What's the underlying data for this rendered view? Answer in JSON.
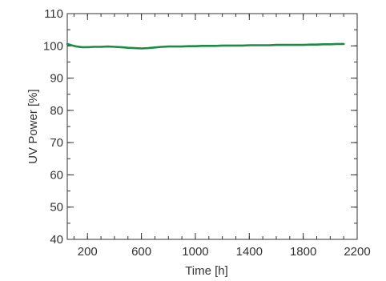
{
  "chart_data": {
    "type": "line",
    "title": "",
    "xlabel": "Time [h]",
    "ylabel": "UV Power [%]",
    "xlim": [
      50,
      2200
    ],
    "ylim": [
      40,
      110
    ],
    "x_ticks": [
      200,
      600,
      1000,
      1400,
      1800,
      2200
    ],
    "y_ticks": [
      40,
      50,
      60,
      70,
      80,
      90,
      100,
      110
    ],
    "x_minor_step": 100,
    "y_minor_step": 5,
    "grid": false,
    "legend": "none",
    "series": [
      {
        "color": "#1e8a45",
        "x": [
          50,
          80,
          120,
          160,
          200,
          250,
          300,
          350,
          400,
          450,
          500,
          550,
          600,
          650,
          700,
          750,
          800,
          850,
          900,
          950,
          1000,
          1050,
          1100,
          1150,
          1200,
          1250,
          1300,
          1350,
          1400,
          1450,
          1500,
          1550,
          1600,
          1650,
          1700,
          1750,
          1800,
          1850,
          1900,
          1950,
          2000,
          2050,
          2100
        ],
        "y": [
          100.6,
          100.2,
          99.8,
          99.6,
          99.6,
          99.7,
          99.7,
          99.8,
          99.7,
          99.6,
          99.4,
          99.3,
          99.2,
          99.3,
          99.5,
          99.7,
          99.8,
          99.8,
          99.8,
          99.9,
          99.9,
          100.0,
          100.0,
          100.0,
          100.1,
          100.1,
          100.1,
          100.1,
          100.2,
          100.2,
          100.2,
          100.2,
          100.3,
          100.3,
          100.3,
          100.3,
          100.3,
          100.4,
          100.4,
          100.5,
          100.5,
          100.6,
          100.6
        ]
      }
    ]
  }
}
